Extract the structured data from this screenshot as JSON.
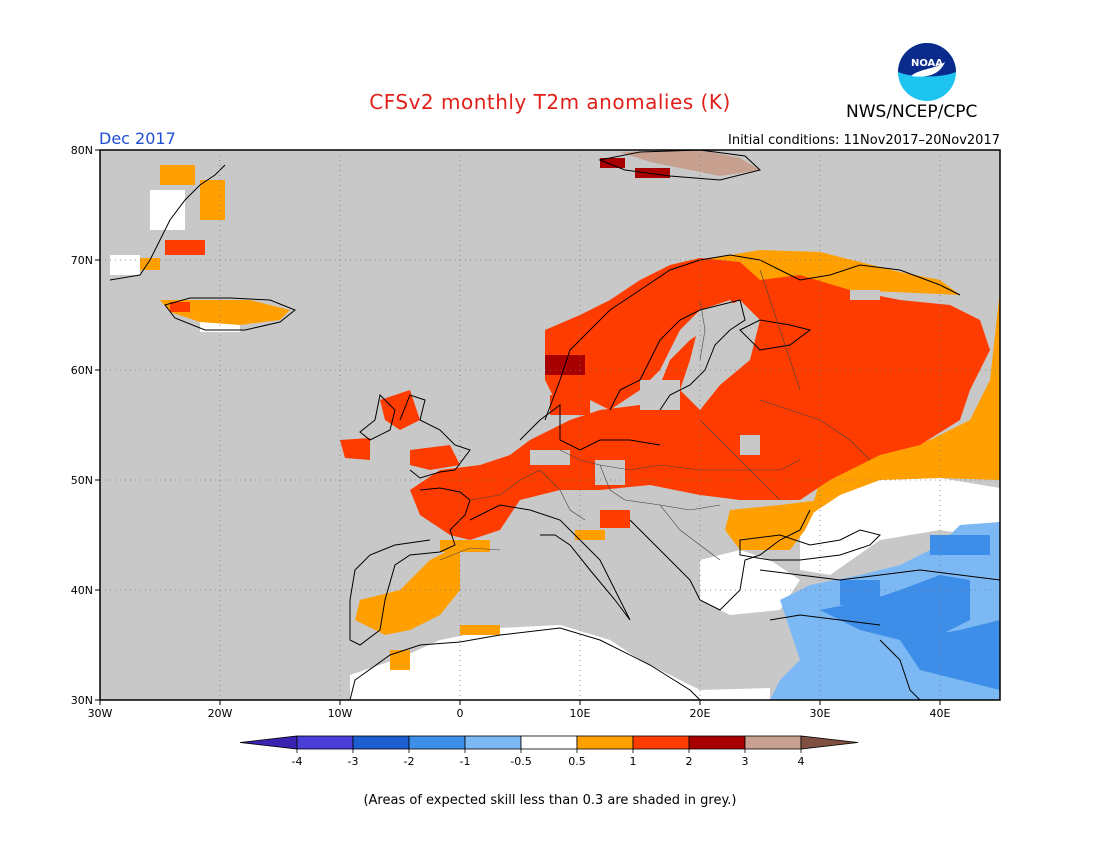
{
  "header": {
    "title": "CFSv2 monthly T2m anomalies (K)",
    "month": "Dec 2017",
    "initial_conditions": "Initial conditions: 11Nov2017–20Nov2017",
    "agency": "NWS/NCEP/CPC",
    "logo_text": "NOAA"
  },
  "map": {
    "lon_range": [
      -30,
      45
    ],
    "lat_range": [
      30,
      80
    ],
    "x_ticks": [
      "30W",
      "20W",
      "10W",
      "0",
      "10E",
      "20E",
      "30E",
      "40E"
    ],
    "y_ticks": [
      "80N",
      "70N",
      "60N",
      "50N",
      "40N",
      "30N"
    ],
    "low_skill_color": "#c8c8c8"
  },
  "legend": {
    "labels": [
      "-4",
      "-3",
      "-2",
      "-1",
      "-0.5",
      "0.5",
      "1",
      "2",
      "3",
      "4"
    ],
    "colors": [
      "#3a23b0",
      "#4a3ed8",
      "#1c5fd0",
      "#3d8ee8",
      "#7cb8f4",
      "#ffffff",
      "#ffa000",
      "#ff3c00",
      "#a80000",
      "#c8a090",
      "#805040"
    ]
  },
  "footnote": "(Areas of expected skill less than 0.3 are shaded in grey.)"
}
